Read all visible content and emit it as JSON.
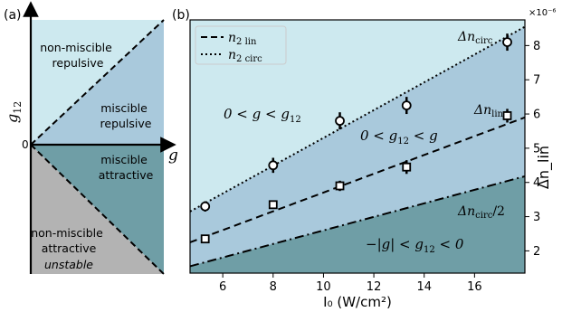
{
  "panel_a": {
    "label": "(a)",
    "y_label": "g",
    "y_label_sub": "12",
    "x_label": "g",
    "origin_label": "0",
    "regions": {
      "non_miscible_repulsive": [
        "non-miscible",
        "repulsive"
      ],
      "miscible_repulsive": [
        "miscible",
        "repulsive"
      ],
      "miscible_attractive": [
        "miscible",
        "attractive"
      ],
      "non_miscible_attractive": [
        "non-miscible",
        "attractive"
      ],
      "unstable": "unstable"
    },
    "colors": {
      "non_miscible_repulsive": "#cde9ef",
      "miscible_repulsive": "#a9c9dc",
      "miscible_attractive": "#6f9ea6",
      "non_miscible_attractive": "#b3b3b3"
    }
  },
  "panel_b": {
    "label": "(b)",
    "legend": [
      {
        "label": "n",
        "sub": "2 lin",
        "style": "dashed"
      },
      {
        "label": "n",
        "sub": "2 circ",
        "style": "dotted"
      }
    ],
    "region_labels": {
      "top": "0 < g < g",
      "top_sub": "12",
      "middle": "0 < g",
      "middle_sub": "12",
      "middle_tail": " < g",
      "bottom": "−|g| < g",
      "bottom_sub": "12",
      "bottom_tail": " < 0"
    },
    "line_labels": {
      "circ": "Δn",
      "circ_sub": "circ",
      "lin": "Δn",
      "lin_sub": "lin",
      "half": "Δn",
      "half_sub": "circ",
      "half_tail": "/2"
    },
    "colors": {
      "region_top": "#cde9ef",
      "region_middle": "#a9c9dc",
      "region_bottom": "#6f9ea6"
    }
  },
  "chart_data": {
    "type": "scatter",
    "xlabel": "I₀ (W/cm²)",
    "ylabel": "Δn_lin",
    "y_multiplier": "×10⁻⁶",
    "xlim": [
      4.7,
      18.0
    ],
    "ylim": [
      1.35,
      8.75
    ],
    "xticks": [
      6,
      8,
      10,
      12,
      14,
      16
    ],
    "yticks": [
      2,
      3,
      4,
      5,
      6,
      7,
      8
    ],
    "series": [
      {
        "name": "Δn_circ",
        "marker": "circle",
        "x": [
          5.3,
          8.0,
          10.65,
          13.3,
          17.3
        ],
        "y": [
          3.3,
          4.5,
          5.8,
          6.25,
          8.1
        ],
        "err": [
          0.15,
          0.22,
          0.25,
          0.25,
          0.25
        ]
      },
      {
        "name": "Δn_lin",
        "marker": "square",
        "x": [
          5.3,
          8.0,
          10.65,
          13.3,
          17.3
        ],
        "y": [
          2.35,
          3.35,
          3.9,
          4.45,
          5.95
        ],
        "err": [
          0.1,
          0.12,
          0.15,
          0.2,
          0.2
        ]
      }
    ],
    "fits": [
      {
        "name": "n2 lin",
        "style": "dashed",
        "x": [
          4.7,
          18.0
        ],
        "y": [
          2.25,
          5.9
        ]
      },
      {
        "name": "n2 circ",
        "style": "dotted",
        "x": [
          4.7,
          18.0
        ],
        "y": [
          3.15,
          8.55
        ]
      },
      {
        "name": "Δn_circ/2",
        "style": "dashdot",
        "x": [
          4.7,
          18.0
        ],
        "y": [
          1.55,
          4.18
        ]
      }
    ]
  }
}
